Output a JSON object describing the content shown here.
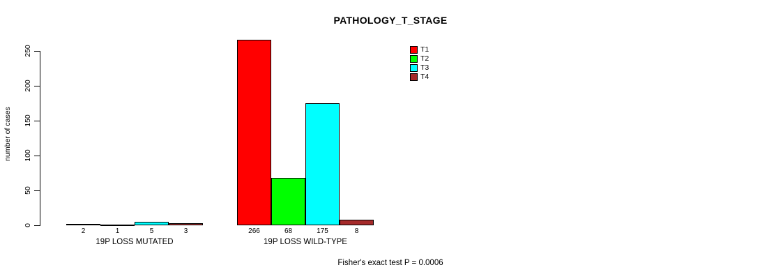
{
  "chart_data": {
    "type": "bar",
    "title": "PATHOLOGY_T_STAGE",
    "ylabel": "number of cases",
    "xlabel": "",
    "categories": [
      "19P LOSS MUTATED",
      "19P LOSS WILD-TYPE"
    ],
    "series": [
      {
        "name": "T1",
        "color": "#FF0000",
        "values": [
          2,
          266
        ]
      },
      {
        "name": "T2",
        "color": "#00FF00",
        "values": [
          1,
          68
        ]
      },
      {
        "name": "T3",
        "color": "#00FFFF",
        "values": [
          5,
          175
        ]
      },
      {
        "name": "T4",
        "color": "#A52A2A",
        "values": [
          3,
          8
        ]
      }
    ],
    "yticks": [
      0,
      50,
      100,
      150,
      200,
      250
    ],
    "ylim": [
      0,
      270
    ],
    "grid": false,
    "legend_position": "inside-top-right",
    "bar_value_labels": true,
    "annotation": "Fisher's exact test P = 0.0006"
  },
  "colors": {
    "background": "#FFFFFF",
    "axis": "#000000",
    "bar_border": "#000000",
    "text": "#000000"
  }
}
